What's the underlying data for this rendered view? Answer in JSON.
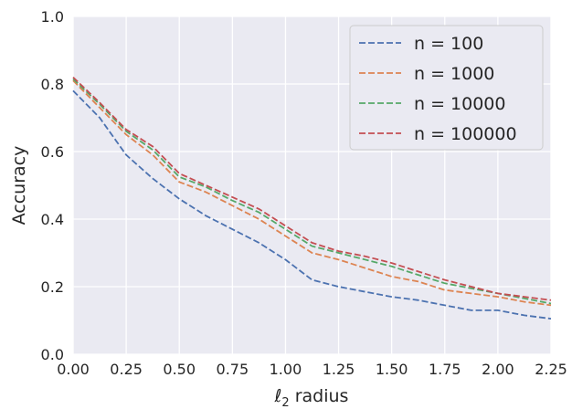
{
  "chart_data": {
    "type": "line",
    "xlabel": "ℓ2 radius",
    "ylabel": "Accuracy",
    "xlim": [
      0,
      2.25
    ],
    "ylim": [
      0,
      1.0
    ],
    "grid": true,
    "legend_position": "top-right",
    "x": [
      0,
      0.125,
      0.25,
      0.375,
      0.5,
      0.625,
      0.75,
      0.875,
      1.0,
      1.125,
      1.25,
      1.375,
      1.5,
      1.625,
      1.75,
      1.875,
      2.0,
      2.125,
      2.25
    ],
    "x_ticks": [
      "0.00",
      "0.25",
      "0.50",
      "0.75",
      "1.00",
      "1.25",
      "1.50",
      "1.75",
      "2.00",
      "2.25"
    ],
    "y_ticks": [
      "0.0",
      "0.2",
      "0.4",
      "0.6",
      "0.8",
      "1.0"
    ],
    "series": [
      {
        "name": "n = 100",
        "color": "#4c72b0",
        "values": [
          0.78,
          0.7,
          0.59,
          0.52,
          0.46,
          0.41,
          0.37,
          0.33,
          0.28,
          0.22,
          0.2,
          0.185,
          0.17,
          0.16,
          0.145,
          0.13,
          0.13,
          0.115,
          0.105
        ]
      },
      {
        "name": "n = 1000",
        "color": "#dd8452",
        "values": [
          0.81,
          0.73,
          0.65,
          0.59,
          0.51,
          0.48,
          0.44,
          0.4,
          0.35,
          0.3,
          0.28,
          0.255,
          0.23,
          0.215,
          0.19,
          0.18,
          0.17,
          0.155,
          0.145
        ]
      },
      {
        "name": "n = 10000",
        "color": "#55a868",
        "values": [
          0.815,
          0.74,
          0.66,
          0.605,
          0.525,
          0.495,
          0.455,
          0.42,
          0.37,
          0.32,
          0.3,
          0.28,
          0.26,
          0.235,
          0.21,
          0.195,
          0.18,
          0.165,
          0.15
        ]
      },
      {
        "name": "n = 100000",
        "color": "#c44e52",
        "values": [
          0.82,
          0.745,
          0.665,
          0.615,
          0.535,
          0.5,
          0.465,
          0.43,
          0.38,
          0.33,
          0.305,
          0.29,
          0.27,
          0.245,
          0.22,
          0.2,
          0.18,
          0.17,
          0.16
        ]
      }
    ]
  }
}
